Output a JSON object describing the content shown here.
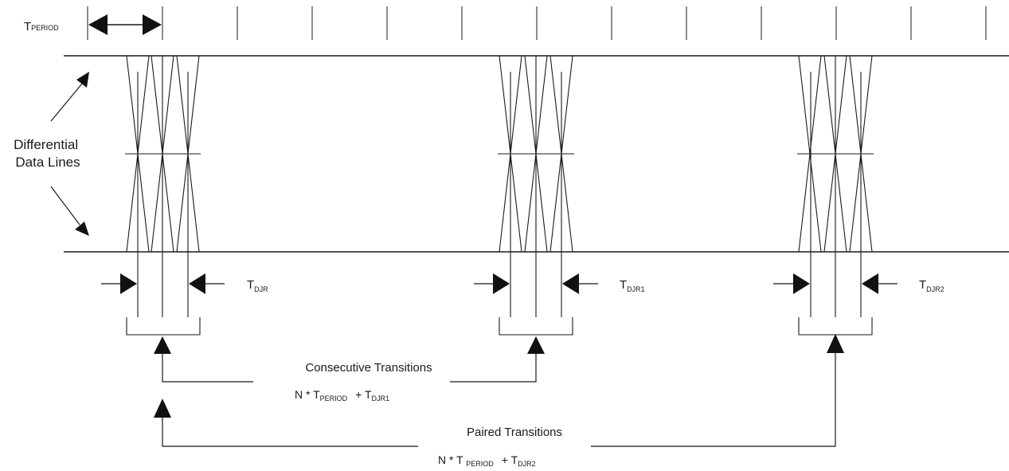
{
  "labels": {
    "t_period": {
      "main": "T",
      "sub": "PERIOD"
    },
    "differential": [
      "Differential",
      "Data Lines"
    ],
    "t_djr": {
      "main": "T",
      "sub": "DJR"
    },
    "t_djr1": {
      "main": "T",
      "sub": "DJR1"
    },
    "t_djr2": {
      "main": "T",
      "sub": "DJR2"
    },
    "consecutive_title": "Consecutive Transitions",
    "consecutive_formula": {
      "pre": "N * T",
      "sub1": "PERIOD",
      "plus": "+ T",
      "sub2": "DJR1"
    },
    "paired_title": "Paired Transitions",
    "paired_formula": {
      "pre": "N * T ",
      "sub1": "PERIOD",
      "plus": "+ T",
      "sub2": "DJR2"
    }
  },
  "colors": {
    "line": "#1a1a1a",
    "arrow": "#111111",
    "background": "#ffffff"
  }
}
